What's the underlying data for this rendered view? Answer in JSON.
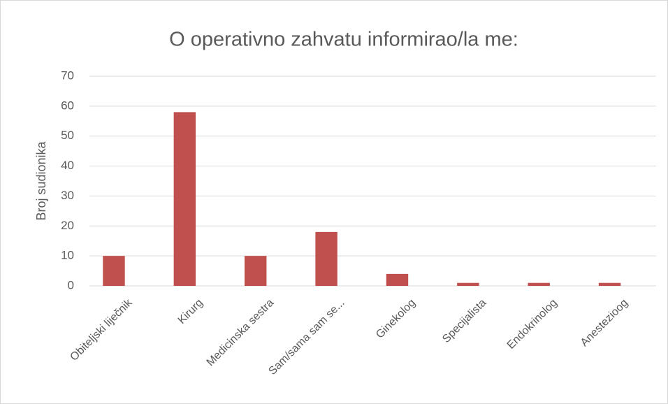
{
  "chart_data": {
    "type": "bar",
    "title": "O operativno zahvatu informirao/la me:",
    "y_label": "Broj sudionika",
    "categories": [
      "Obiteljski liječnik",
      "Kirurg",
      "Medicinska sestra",
      "Sam/sama sam se...",
      "Ginekolog",
      "Specijalista",
      "Endokrinolog",
      "Anestezioog"
    ],
    "values": [
      10,
      58,
      10,
      18,
      4,
      1,
      1,
      1
    ],
    "color": "#c0504d",
    "ylim": [
      0,
      70
    ],
    "yticks": [
      0,
      10,
      20,
      30,
      40,
      50,
      60,
      70
    ],
    "grid": true
  }
}
